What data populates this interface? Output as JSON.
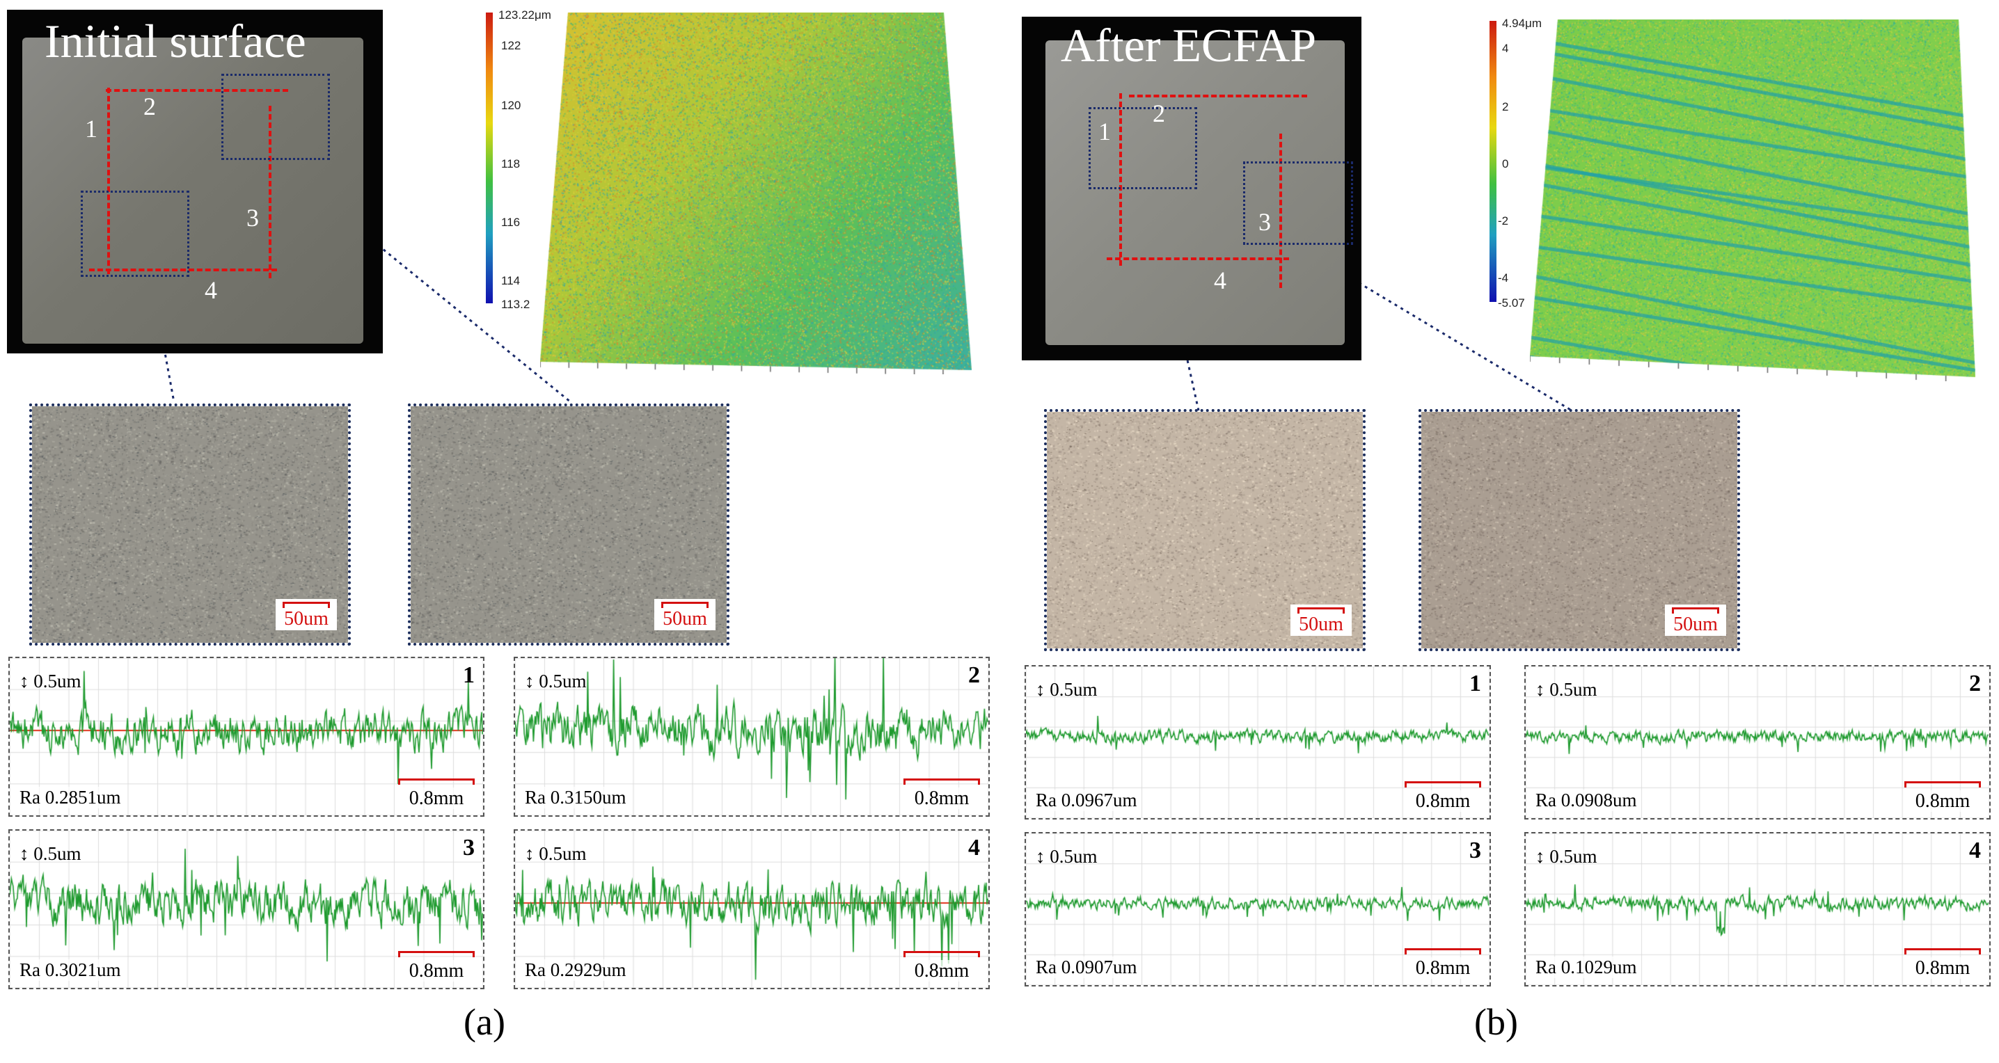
{
  "panel_a": {
    "caption": "(a)",
    "photo_title": "Initial surface",
    "region_numbers": [
      "1",
      "2",
      "3",
      "4"
    ],
    "colorbar": {
      "max_label": "123.22μm",
      "ticks": [
        "122",
        "120",
        "118",
        "116",
        "114"
      ],
      "min_label": "113.2"
    },
    "micrographs": [
      {
        "scale_label": "50um"
      },
      {
        "scale_label": "50um"
      }
    ],
    "profiles": [
      {
        "number": "1",
        "vertical_scale": "0.5um",
        "ra": "Ra 0.2851um",
        "horizontal_scale": "0.8mm"
      },
      {
        "number": "2",
        "vertical_scale": "0.5um",
        "ra": "Ra 0.3150um",
        "horizontal_scale": "0.8mm"
      },
      {
        "number": "3",
        "vertical_scale": "0.5um",
        "ra": "Ra 0.3021um",
        "horizontal_scale": "0.8mm"
      },
      {
        "number": "4",
        "vertical_scale": "0.5um",
        "ra": "Ra 0.2929um",
        "horizontal_scale": "0.8mm"
      }
    ]
  },
  "panel_b": {
    "caption": "(b)",
    "photo_title": "After ECFAP",
    "region_numbers": [
      "1",
      "2",
      "3",
      "4"
    ],
    "colorbar": {
      "max_label": "4.94μm",
      "ticks": [
        "4",
        "2",
        "0",
        "-2",
        "-4"
      ],
      "min_label": "-5.07"
    },
    "micrographs": [
      {
        "scale_label": "50um"
      },
      {
        "scale_label": "50um"
      }
    ],
    "profiles": [
      {
        "number": "1",
        "vertical_scale": "0.5um",
        "ra": "Ra 0.0967um",
        "horizontal_scale": "0.8mm"
      },
      {
        "number": "2",
        "vertical_scale": "0.5um",
        "ra": "Ra 0.0908um",
        "horizontal_scale": "0.8mm"
      },
      {
        "number": "3",
        "vertical_scale": "0.5um",
        "ra": "Ra 0.0907um",
        "horizontal_scale": "0.8mm"
      },
      {
        "number": "4",
        "vertical_scale": "0.5um",
        "ra": "Ra 0.1029um",
        "horizontal_scale": "0.8mm"
      }
    ]
  },
  "colors": {
    "marker_red": "#e01010",
    "region_blue": "#1a2a6a",
    "profile_green": "#1e9a2e",
    "mean_line": "#e0301a"
  }
}
